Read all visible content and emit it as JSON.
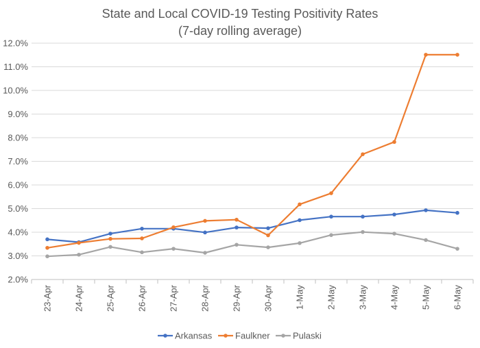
{
  "chart_data": {
    "type": "line",
    "title": "State and Local COVID-19 Testing Positivity Rates",
    "subtitle": "(7-day rolling average)",
    "categories": [
      "23-Apr",
      "24-Apr",
      "25-Apr",
      "26-Apr",
      "27-Apr",
      "28-Apr",
      "29-Apr",
      "30-Apr",
      "1-May",
      "2-May",
      "3-May",
      "4-May",
      "5-May",
      "6-May"
    ],
    "ylim": [
      2.0,
      12.0
    ],
    "yticks": [
      2.0,
      3.0,
      4.0,
      5.0,
      6.0,
      7.0,
      8.0,
      9.0,
      10.0,
      11.0,
      12.0
    ],
    "ytick_labels": [
      "2.0%",
      "3.0%",
      "4.0%",
      "5.0%",
      "6.0%",
      "7.0%",
      "8.0%",
      "9.0%",
      "10.0%",
      "11.0%",
      "12.0%"
    ],
    "grid": true,
    "legend_position": "bottom",
    "series": [
      {
        "name": "Arkansas",
        "color": "#4472c4",
        "values": [
          3.7,
          3.58,
          3.94,
          4.15,
          4.15,
          3.99,
          4.2,
          4.17,
          4.51,
          4.66,
          4.66,
          4.75,
          4.93,
          4.82
        ]
      },
      {
        "name": "Faulkner",
        "color": "#ed7d31",
        "values": [
          3.34,
          3.55,
          3.72,
          3.74,
          4.21,
          4.48,
          4.53,
          3.87,
          5.18,
          5.65,
          7.3,
          7.82,
          11.51,
          11.51
        ]
      },
      {
        "name": "Pulaski",
        "color": "#a5a5a5",
        "values": [
          2.98,
          3.05,
          3.38,
          3.15,
          3.3,
          3.13,
          3.47,
          3.36,
          3.54,
          3.88,
          4.01,
          3.94,
          3.67,
          3.3
        ]
      }
    ]
  }
}
